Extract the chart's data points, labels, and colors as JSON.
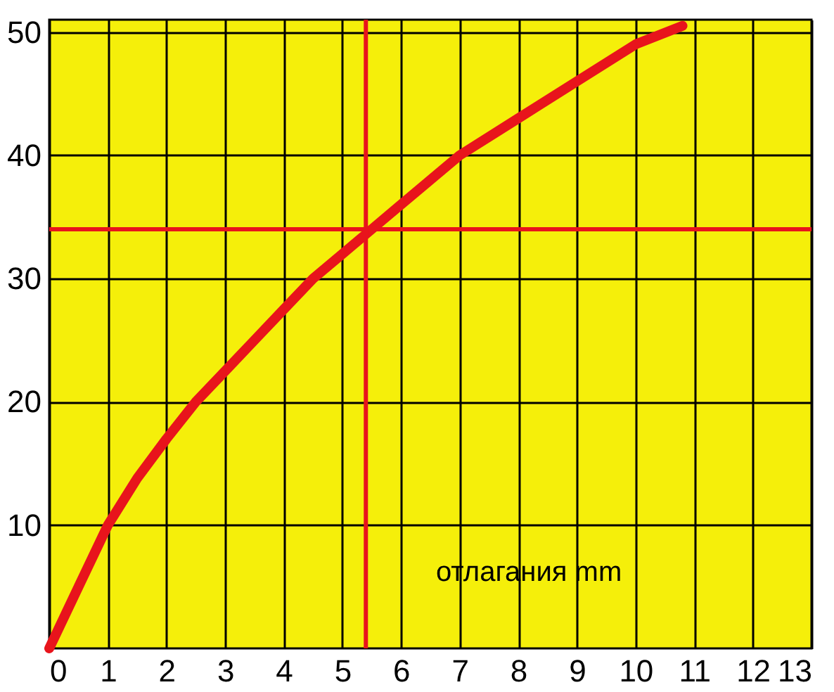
{
  "chart_data": {
    "type": "line",
    "xlabel": "отлагания mm",
    "x": [
      0,
      0.5,
      1,
      1.5,
      2,
      2.5,
      3,
      3.5,
      4,
      4.5,
      5,
      5.5,
      6,
      6.5,
      7,
      8,
      9,
      10,
      10.8
    ],
    "series": [
      {
        "color": "#e8141c",
        "values": [
          0,
          5,
          10,
          13.8,
          17,
          20,
          22.5,
          25,
          27.5,
          30,
          32,
          34,
          36,
          38,
          40,
          43,
          46,
          49,
          50.5
        ]
      }
    ],
    "xlim": [
      0,
      13
    ],
    "xticks": [
      0,
      1,
      2,
      3,
      4,
      5,
      6,
      7,
      8,
      9,
      10,
      11,
      12,
      13
    ],
    "ylim": [
      0,
      51
    ],
    "yticks": [
      10,
      20,
      30,
      40,
      50
    ],
    "ref_lines": [
      {
        "axis": "y",
        "value": 34,
        "color": "#e8141c"
      },
      {
        "axis": "x",
        "value": 5.4,
        "color": "#e8141c"
      }
    ],
    "grid": true,
    "line_style": "solid"
  }
}
